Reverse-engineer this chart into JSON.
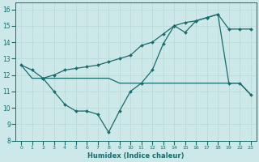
{
  "xlabel": "Humidex (Indice chaleur)",
  "bg_color": "#cce8e8",
  "grid_color": "#b8d8d8",
  "line_color": "#1a6b6b",
  "ylim": [
    8,
    16.4
  ],
  "yticks": [
    8,
    9,
    10,
    11,
    12,
    13,
    14,
    15,
    16
  ],
  "xtick_labels": [
    "0",
    "1",
    "2",
    "3",
    "4",
    "5",
    "6",
    "7",
    "8",
    "9",
    "10",
    "11",
    "12",
    "13",
    "14",
    "15",
    "16",
    "17",
    "18",
    "19",
    "22",
    "23"
  ],
  "line1_idx": [
    0,
    1,
    2,
    3,
    4,
    5,
    6,
    7,
    8,
    9,
    10,
    11,
    12,
    13,
    14,
    15,
    16,
    17,
    18,
    19,
    20,
    21
  ],
  "line1_y": [
    12.6,
    12.3,
    11.8,
    11.0,
    10.2,
    9.8,
    9.8,
    9.6,
    8.5,
    9.8,
    11.0,
    11.5,
    12.3,
    13.9,
    15.0,
    14.6,
    15.3,
    15.5,
    15.7,
    11.5,
    11.5,
    10.8
  ],
  "line2_idx": [
    0,
    1,
    2,
    3,
    4,
    5,
    6,
    7,
    8,
    9,
    10,
    11,
    12,
    13,
    14,
    15,
    16,
    17,
    18,
    19,
    20,
    21
  ],
  "line2_y": [
    12.6,
    11.8,
    11.8,
    11.8,
    11.8,
    11.8,
    11.8,
    11.8,
    11.8,
    11.5,
    11.5,
    11.5,
    11.5,
    11.5,
    11.5,
    11.5,
    11.5,
    11.5,
    11.5,
    11.5,
    11.5,
    10.8
  ],
  "line3_idx": [
    2,
    3,
    4,
    5,
    6,
    7,
    8,
    9,
    10,
    11,
    12,
    13,
    14,
    15,
    16,
    17,
    18,
    19,
    20,
    21
  ],
  "line3_y": [
    11.8,
    12.0,
    12.3,
    12.4,
    12.5,
    12.6,
    12.8,
    13.0,
    13.2,
    13.8,
    14.0,
    14.5,
    15.0,
    15.2,
    15.3,
    15.5,
    15.7,
    14.8,
    14.8,
    14.8
  ]
}
